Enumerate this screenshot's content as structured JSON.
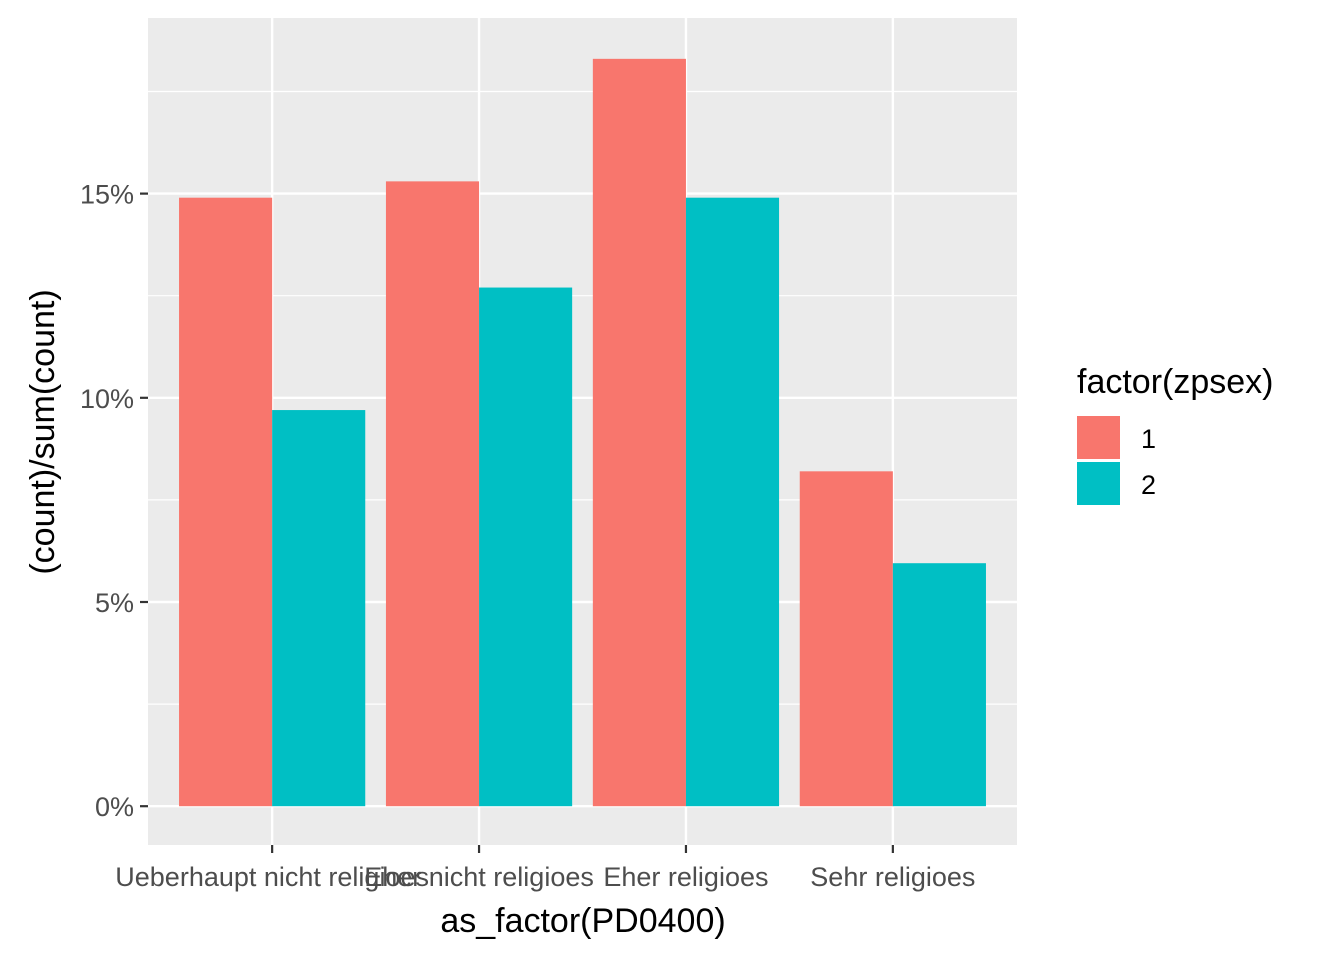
{
  "chart_data": {
    "type": "bar",
    "categories": [
      "Ueberhaupt nicht religioes",
      "Eher nicht religioes",
      "Eher religioes",
      "Sehr religioes"
    ],
    "series": [
      {
        "name": "1",
        "values": [
          14.9,
          15.3,
          18.3,
          8.2
        ],
        "color": "#F8766D"
      },
      {
        "name": "2",
        "values": [
          9.7,
          12.7,
          14.9,
          5.95
        ],
        "color": "#00BFC4"
      }
    ],
    "yticks": [
      0,
      5,
      10,
      15
    ],
    "ytick_labels": [
      "0%",
      "5%",
      "10%",
      "15%"
    ],
    "ylim": [
      -0.95,
      19.3
    ],
    "xlabel": "as_factor(PD0400)",
    "ylabel": "(count)/sum(count)",
    "legend_title": "factor(zpsex)",
    "legend_labels": [
      "1",
      "2"
    ],
    "grid": true,
    "legend_position": "right",
    "panel_background": "#EBEBEB"
  }
}
